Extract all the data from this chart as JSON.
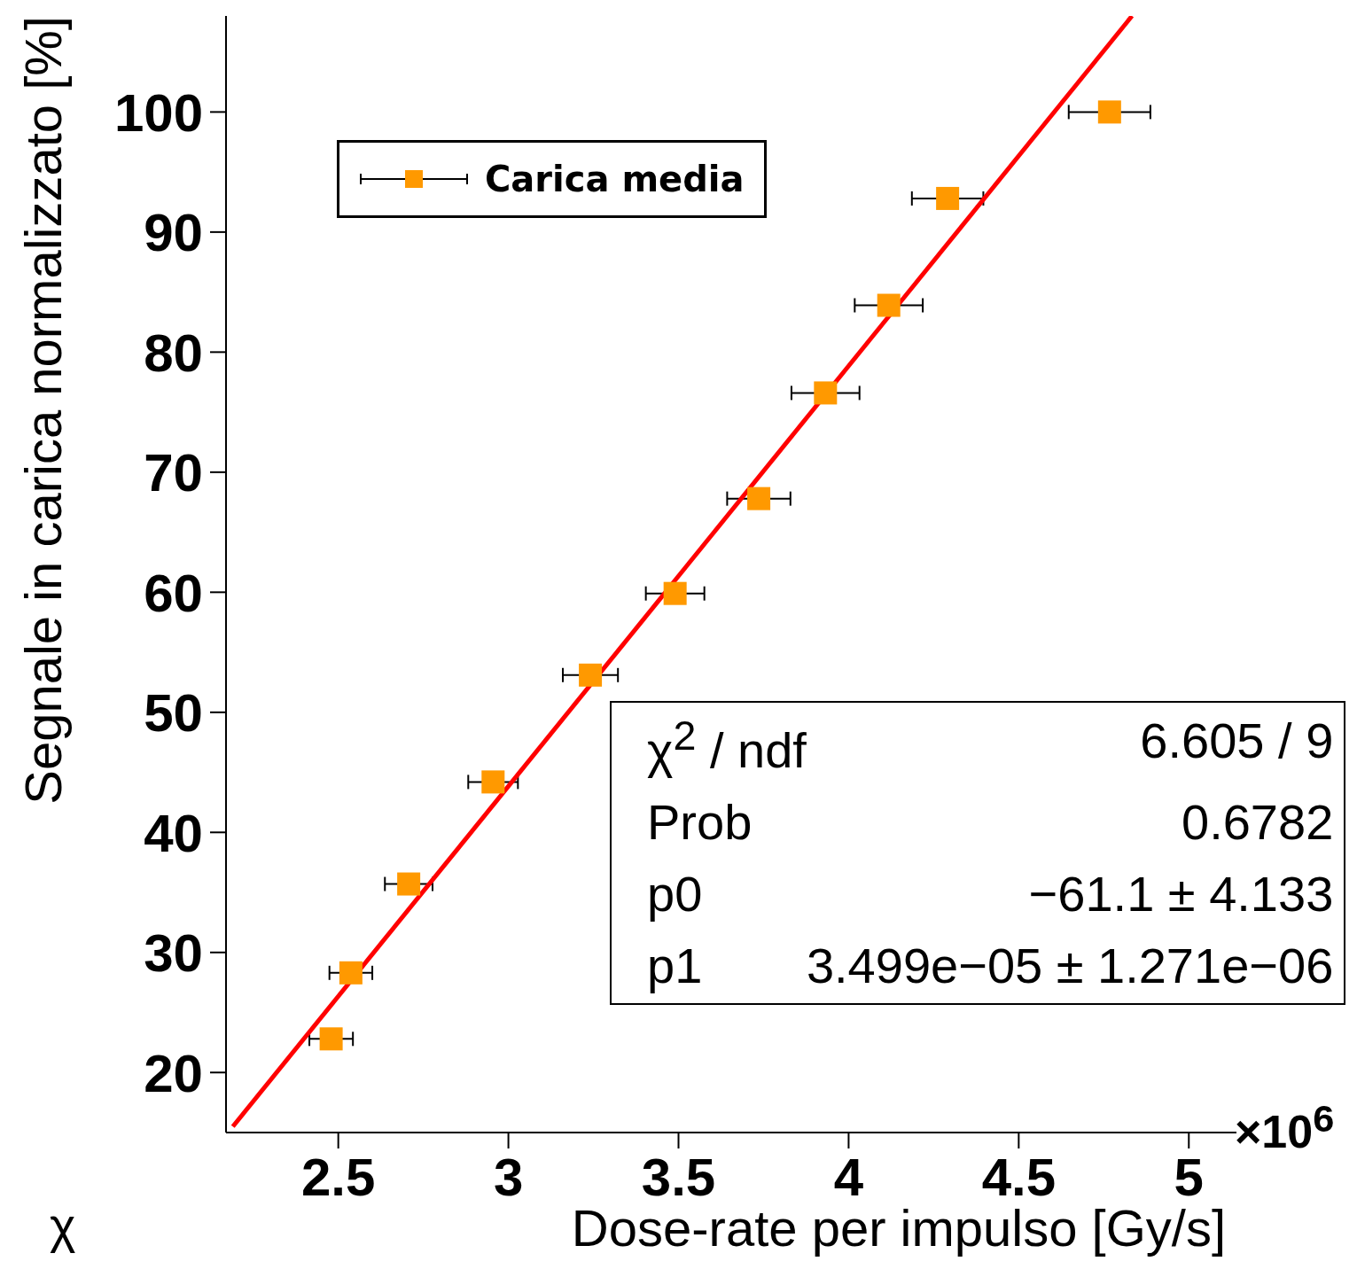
{
  "chart_data": {
    "type": "scatter",
    "xlabel": "Dose-rate per impulso [Gy/s]",
    "ylabel": "Segnale in carica normalizzato [%]",
    "xlim": [
      2.17,
      5.14
    ],
    "ylim": [
      15,
      108
    ],
    "xticks": [
      2.5,
      3,
      3.5,
      4,
      4.5,
      5
    ],
    "yticks": [
      20,
      30,
      40,
      50,
      60,
      70,
      80,
      90,
      100
    ],
    "grid": false,
    "legend": "top left",
    "marker": "square",
    "series": [
      {
        "name": "Carica media",
        "color": "#ff9900",
        "x": [
          2.479,
          2.537,
          2.707,
          2.955,
          3.241,
          3.49,
          3.736,
          3.932,
          4.118,
          4.291,
          4.767
        ],
        "values": [
          22.8,
          28.3,
          35.7,
          44.2,
          53.1,
          59.9,
          67.8,
          76.6,
          83.9,
          92.8,
          100
        ],
        "xerrors": [
          0.064,
          0.063,
          0.07,
          0.073,
          0.081,
          0.086,
          0.093,
          0.1,
          0.1,
          0.105,
          0.12
        ]
      },
      {
        "type": "line",
        "color": "#ff0000",
        "x": [
          2.19,
          4.833
        ],
        "values": [
          15.5,
          108
        ],
        "marker": "none"
      }
    ],
    "annotations": [
      "χ$^{2}$ / ndf",
      "6.605 / 9",
      "Prob",
      "0.6782",
      "p0",
      "−61.1 ± 4.133",
      "p1",
      "3.499e−05 ± 1.271e−06",
      "×10$^{6}$",
      "χ"
    ]
  }
}
